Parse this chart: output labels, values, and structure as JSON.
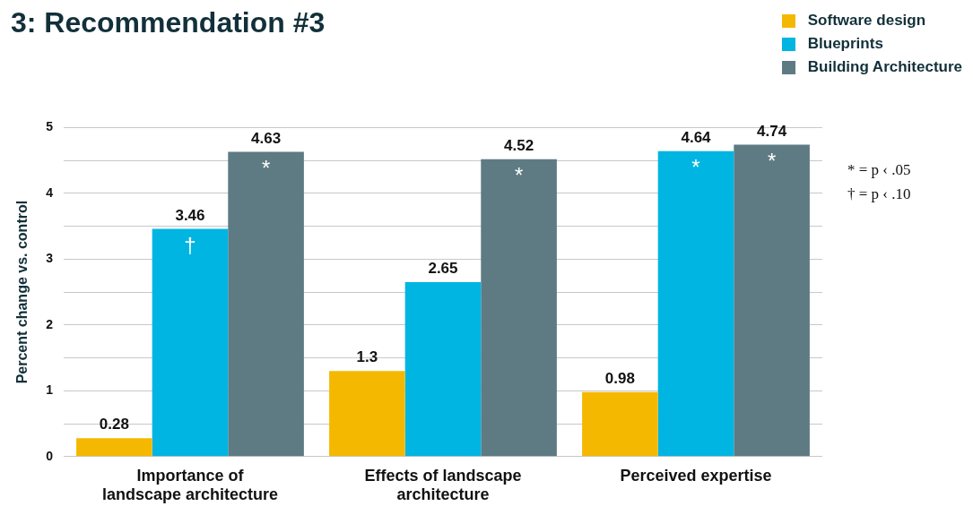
{
  "chart_data": {
    "type": "bar",
    "title": "3: Recommendation #3",
    "ylabel": "Percent change vs. control",
    "categories": [
      "Importance of landscape architecture",
      "Effects of landscape architecture",
      "Perceived expertise"
    ],
    "series": [
      {
        "name": "Software design",
        "color": "#f5b800",
        "values": [
          0.28,
          1.3,
          0.98
        ]
      },
      {
        "name": "Blueprints",
        "color": "#00b5e2",
        "values": [
          3.46,
          2.65,
          4.64
        ]
      },
      {
        "name": "Building Architecture",
        "color": "#5e7b84",
        "values": [
          4.63,
          4.52,
          4.74
        ]
      }
    ],
    "ylim": [
      0,
      5
    ],
    "yticks": [
      0,
      {
        "value": 0.5,
        "label": null
      },
      1,
      {
        "value": 1.5,
        "label": null
      },
      2,
      {
        "value": 2.5,
        "label": null
      },
      3,
      {
        "value": 3.5,
        "label": null
      },
      4,
      {
        "value": 4.5,
        "label": null
      },
      5
    ],
    "grid": "y",
    "legend": "top right",
    "data_labels": true,
    "annotations": [
      {
        "text": "†",
        "x": "Importance of landscape architecture",
        "y": 3.46
      },
      "*",
      "*",
      {
        "text": "*",
        "x": "Perceived expertise",
        "y": 4.64
      },
      "*",
      "* = p ‹ .05",
      "† = p ‹ .10"
    ]
  }
}
